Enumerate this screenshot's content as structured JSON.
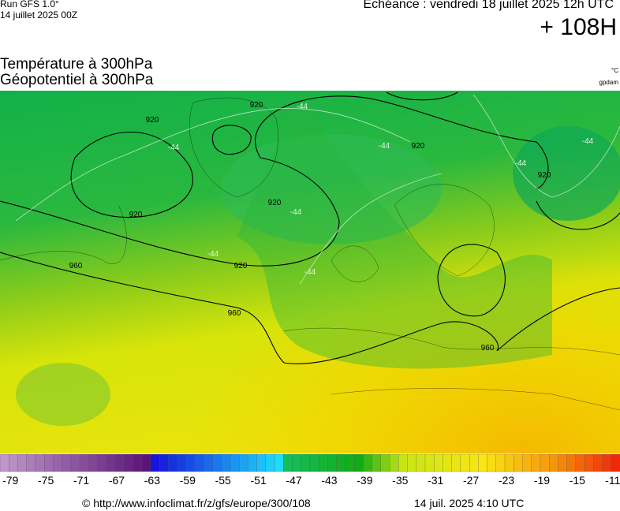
{
  "header": {
    "run": "Run GFS 1.0°",
    "run_date": "14 juillet 2025 00Z",
    "valid": "Echéance : vendredi 18 juillet 2025 12h UTC",
    "lead": "+ 108H"
  },
  "map": {
    "title_temp": "Température à 300hPa",
    "title_geo": "Géopotentiel à 300hPa",
    "unit_temp": "°C",
    "unit_geo": "gpdam",
    "geopotential_labels": [
      920,
      920,
      920,
      920,
      920,
      920,
      920,
      960,
      960,
      960
    ],
    "temperature_labels": [
      -44,
      -44,
      -44,
      -44,
      -44,
      -44,
      -44,
      -44
    ]
  },
  "colorbar": {
    "labels": [
      -79,
      -75,
      -71,
      -67,
      -63,
      -59,
      -55,
      -51,
      -47,
      -43,
      -39,
      -35,
      -31,
      -27,
      -23,
      -19,
      -15,
      -11
    ]
  },
  "footer": {
    "source": "© http://www.infoclimat.fr/z/gfs/europe/300/108",
    "generated": "14 juil. 2025  4:10 UTC"
  }
}
